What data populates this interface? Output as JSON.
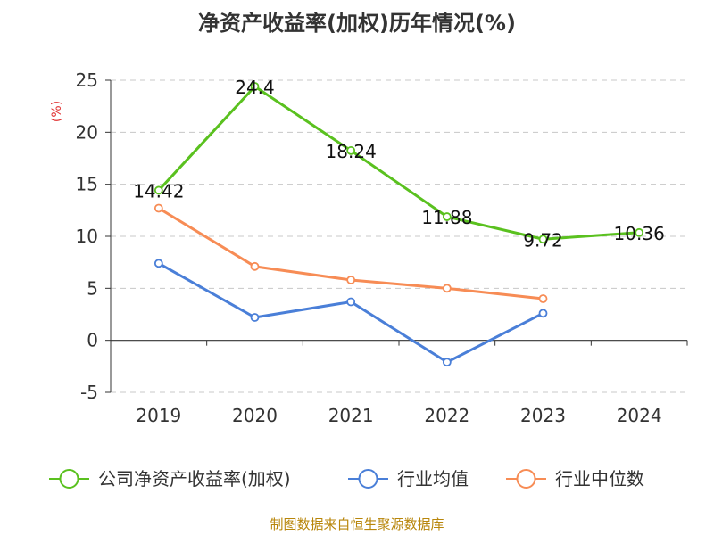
{
  "chart_data": {
    "type": "line",
    "title": "净资产收益率(加权)历年情况(%)",
    "ylabel": "(%)",
    "xlabel": "",
    "categories": [
      "2019",
      "2020",
      "2021",
      "2022",
      "2023",
      "2024"
    ],
    "yticks": [
      "25",
      "20",
      "15",
      "10",
      "5",
      "0",
      "-5"
    ],
    "ylim": [
      -5,
      25
    ],
    "grid": true,
    "legend_position": "bottom",
    "series": [
      {
        "name": "公司净资产收益率(加权)",
        "color": "#5ac11f",
        "values": [
          14.42,
          24.4,
          18.24,
          11.88,
          9.72,
          10.36
        ],
        "labels": [
          "14.42",
          "24.4",
          "18.24",
          "11.88",
          "9.72",
          "10.36"
        ]
      },
      {
        "name": "行业均值",
        "color": "#4a7fd8",
        "values": [
          7.4,
          2.2,
          3.7,
          -2.1,
          2.6,
          null
        ]
      },
      {
        "name": "行业中位数",
        "color": "#f78c55",
        "values": [
          12.7,
          7.1,
          5.8,
          5.0,
          4.0,
          null
        ]
      }
    ],
    "source": "制图数据来自恒生聚源数据库"
  }
}
